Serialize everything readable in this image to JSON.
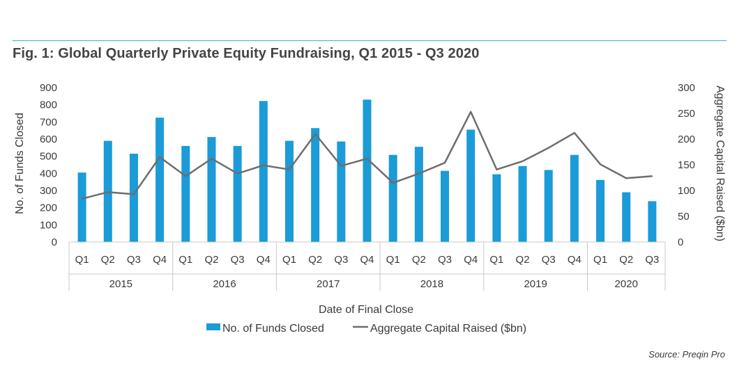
{
  "title": "Fig. 1: Global Quarterly Private Equity Fundraising, Q1 2015 - Q3 2020",
  "source": "Source: Preqin Pro",
  "colors": {
    "bar": "#1b9bd7",
    "line": "#6d6d6d",
    "accent_rule": "#3aaed3"
  },
  "chart_data": {
    "type": "bar",
    "title": "Fig. 1: Global Quarterly Private Equity Fundraising, Q1 2015 - Q3 2020",
    "xlabel": "Date of Final Close",
    "ylabel": "No. of Funds Closed",
    "y2label": "Aggregate Capital Raised ($bn)",
    "ylim": [
      0,
      900
    ],
    "y2lim": [
      0,
      300
    ],
    "yticks": [
      "0",
      "100",
      "200",
      "300",
      "400",
      "500",
      "600",
      "700",
      "800",
      "900"
    ],
    "y2ticks": [
      "0",
      "50",
      "100",
      "150",
      "200",
      "250",
      "300"
    ],
    "categories": [
      "Q1",
      "Q2",
      "Q3",
      "Q4",
      "Q1",
      "Q2",
      "Q3",
      "Q4",
      "Q1",
      "Q2",
      "Q3",
      "Q4",
      "Q1",
      "Q2",
      "Q3",
      "Q4",
      "Q1",
      "Q2",
      "Q3",
      "Q4",
      "Q1",
      "Q2",
      "Q3"
    ],
    "groups": [
      {
        "label": "2015",
        "count": 4
      },
      {
        "label": "2016",
        "count": 4
      },
      {
        "label": "2017",
        "count": 4
      },
      {
        "label": "2018",
        "count": 4
      },
      {
        "label": "2019",
        "count": 4
      },
      {
        "label": "2020",
        "count": 3
      }
    ],
    "series": [
      {
        "name": "No. of Funds Closed",
        "type": "bar",
        "axis": "left",
        "values": [
          405,
          590,
          515,
          725,
          560,
          612,
          560,
          822,
          590,
          664,
          586,
          830,
          508,
          555,
          415,
          655,
          395,
          443,
          420,
          508,
          362,
          290,
          238
        ]
      },
      {
        "name": "Aggregate Capital Raised ($bn)",
        "type": "line",
        "axis": "right",
        "values": [
          84,
          97,
          93,
          165,
          128,
          162,
          133,
          149,
          141,
          210,
          148,
          162,
          115,
          133,
          154,
          253,
          141,
          157,
          183,
          212,
          151,
          124,
          128
        ]
      }
    ],
    "legend": "bottom",
    "grid": false
  }
}
